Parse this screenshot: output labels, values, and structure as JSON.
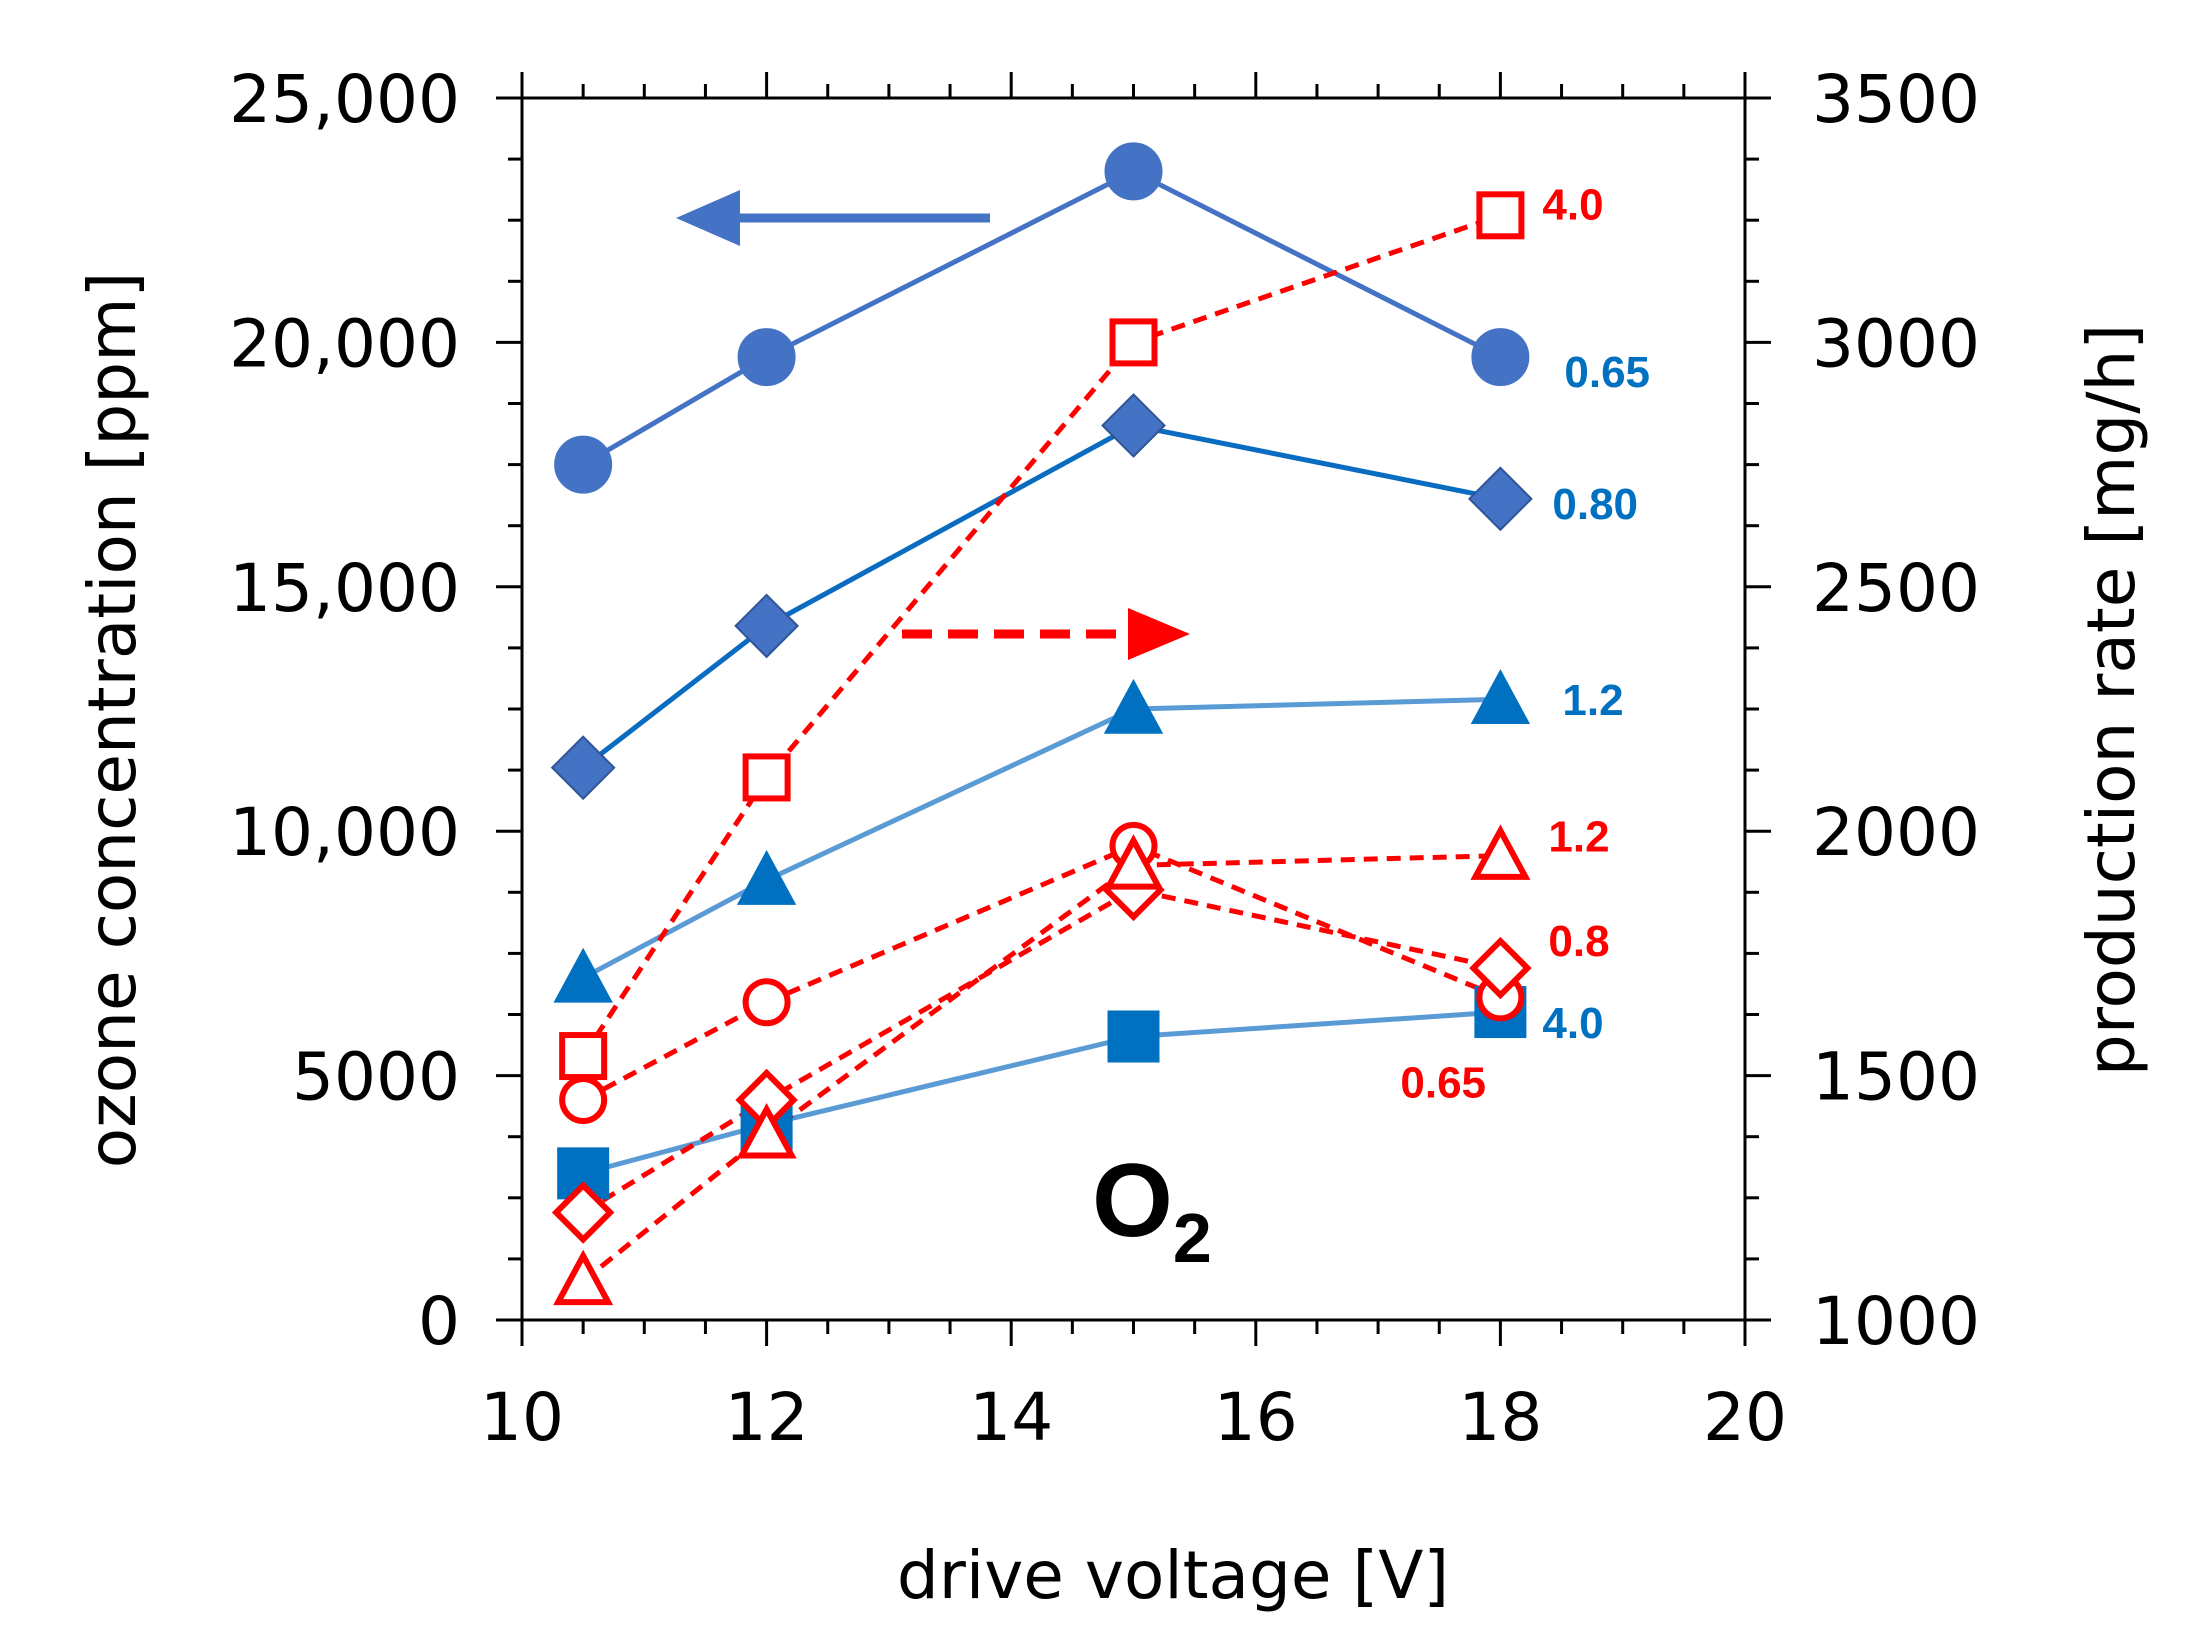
{
  "chart_data": {
    "type": "line",
    "annotation": {
      "main": "O",
      "subscript": "2"
    },
    "xlabel": "drive voltage [V]",
    "xlim": [
      10,
      20
    ],
    "xticks": [
      10,
      12,
      14,
      16,
      18,
      20
    ],
    "xtick_labels": [
      "10",
      "12",
      "14",
      "16",
      "18",
      "20"
    ],
    "y_left": {
      "label": "ozone concentration [ppm]",
      "lim": [
        0,
        25000
      ],
      "ticks": [
        0,
        5000,
        10000,
        15000,
        20000,
        25000
      ],
      "tick_labels": [
        "0",
        "5000",
        "10,000",
        "15,000",
        "20,000",
        "25,000"
      ]
    },
    "y_right": {
      "label": "production rate  [mg/h]",
      "lim": [
        1000,
        3500
      ],
      "ticks": [
        1000,
        1500,
        2000,
        2500,
        3000,
        3500
      ],
      "tick_labels": [
        "1000",
        "1500",
        "2000",
        "2500",
        "3000",
        "3500"
      ]
    },
    "arrows": [
      {
        "points_to": "left axis",
        "color": "#4472c4",
        "style": "solid"
      },
      {
        "points_to": "right axis",
        "color": "#ff0000",
        "style": "dashed"
      }
    ],
    "series": [
      {
        "name": "0.65",
        "axis": "left",
        "marker": "circle",
        "filled": true,
        "line": "solid",
        "color": "#4472c4",
        "x": [
          10.5,
          12,
          15,
          18
        ],
        "values": [
          17500,
          19700,
          23500,
          19700
        ],
        "label_text": "0.65",
        "label_color": "#0070c0"
      },
      {
        "name": "0.80",
        "axis": "left",
        "marker": "diamond",
        "filled": true,
        "line": "solid",
        "color": "#0a6cc0",
        "marker_color": "#4472c4",
        "x": [
          10.5,
          12,
          15,
          18
        ],
        "values": [
          11300,
          14200,
          18300,
          16800
        ],
        "label_text": "0.80",
        "label_color": "#0070c0"
      },
      {
        "name": "1.2",
        "axis": "left",
        "marker": "triangle",
        "filled": true,
        "line": "solid",
        "color": "#5b9bd5",
        "marker_color": "#0070c0",
        "x": [
          10.5,
          12,
          15,
          18
        ],
        "values": [
          7000,
          9000,
          12500,
          12700
        ],
        "label_text": "1.2",
        "label_color": "#0070c0"
      },
      {
        "name": "4.0",
        "axis": "left",
        "marker": "square",
        "filled": true,
        "line": "solid",
        "color": "#5b9bd5",
        "marker_color": "#0070c0",
        "x": [
          10.5,
          12,
          15,
          18
        ],
        "values": [
          3000,
          4000,
          5800,
          6300
        ],
        "label_text": "4.0",
        "label_color": "#0070c0"
      },
      {
        "name": "4.0",
        "axis": "right",
        "marker": "square",
        "filled": false,
        "line": "dashed",
        "color": "#ff0000",
        "x": [
          10.5,
          12,
          15,
          18
        ],
        "values": [
          1540,
          2110,
          3000,
          3260
        ],
        "label_text": "4.0",
        "label_color": "#ff0000"
      },
      {
        "name": "0.65",
        "axis": "right",
        "marker": "circle",
        "filled": false,
        "line": "dashed",
        "color": "#ff0000",
        "x": [
          10.5,
          12,
          15,
          18
        ],
        "values": [
          1450,
          1650,
          1970,
          1660
        ],
        "label_text": "0.65",
        "label_color": "#ff0000"
      },
      {
        "name": "0.8",
        "axis": "right",
        "marker": "diamond",
        "filled": false,
        "line": "dashed",
        "color": "#ff0000",
        "x": [
          10.5,
          12,
          15,
          18
        ],
        "values": [
          1220,
          1450,
          1880,
          1720
        ],
        "label_text": "0.8",
        "label_color": "#ff0000"
      },
      {
        "name": "1.2",
        "axis": "right",
        "marker": "triangle",
        "filled": false,
        "line": "dashed",
        "color": "#ff0000",
        "x": [
          10.5,
          12,
          15,
          18
        ],
        "values": [
          1080,
          1380,
          1930,
          1950
        ],
        "label_text": "1.2",
        "label_color": "#ff0000"
      }
    ]
  }
}
